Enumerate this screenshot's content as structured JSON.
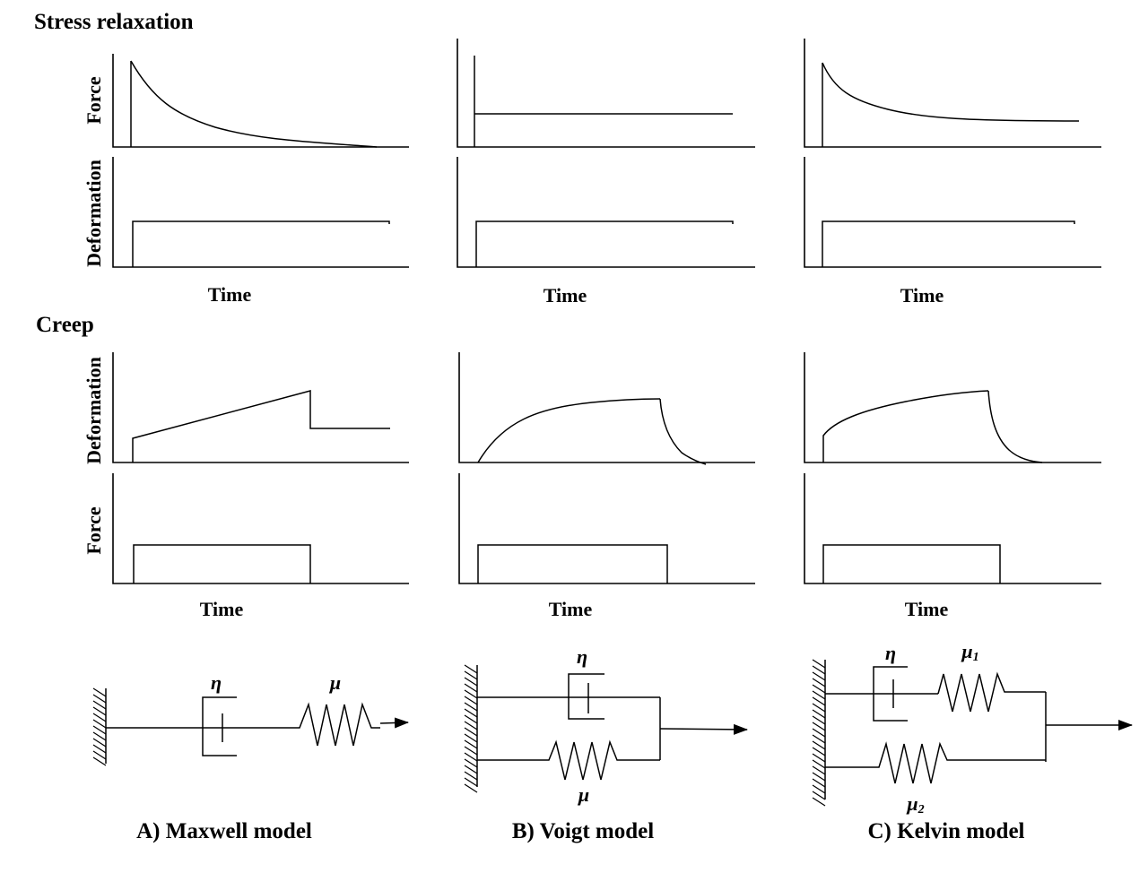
{
  "sections": {
    "stress_relaxation": "Stress relaxation",
    "creep": "Creep"
  },
  "axis_labels": {
    "force": "Force",
    "deformation": "Deformation",
    "time": "Time"
  },
  "models": [
    {
      "id": "maxwell",
      "caption": "A) Maxwell model",
      "symbols": [
        "η",
        "μ"
      ]
    },
    {
      "id": "voigt",
      "caption": "B) Voigt model",
      "symbols": [
        "η",
        "μ"
      ]
    },
    {
      "id": "kelvin",
      "caption": "C) Kelvin model",
      "symbols": [
        "η",
        "μ",
        "μ"
      ],
      "subscripts": [
        "1",
        "2"
      ]
    }
  ]
}
